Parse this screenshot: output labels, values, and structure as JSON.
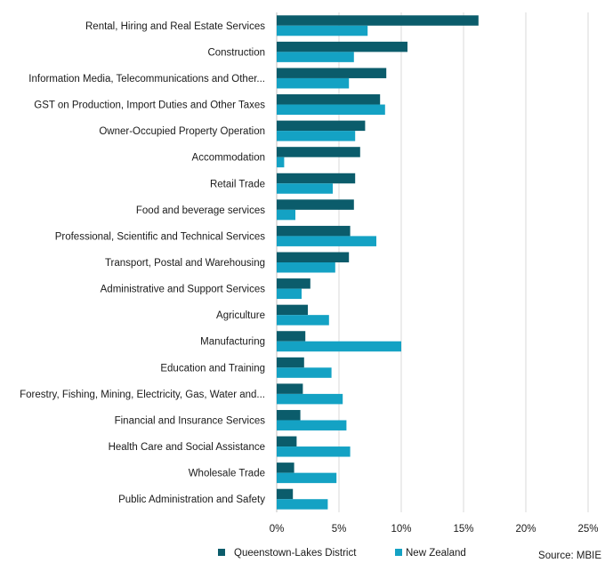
{
  "chart_data": {
    "type": "bar",
    "orientation": "horizontal",
    "title": "",
    "xlabel": "",
    "ylabel": "",
    "xlim": [
      0,
      25
    ],
    "x_ticks": [
      "0%",
      "5%",
      "10%",
      "15%",
      "20%",
      "25%"
    ],
    "grid": "vertical",
    "categories": [
      "Rental, Hiring and Real Estate Services",
      "Construction",
      "Information Media, Telecommunications and Other...",
      "GST on Production, Import Duties and Other Taxes",
      "Owner-Occupied Property Operation",
      "Accommodation",
      "Retail Trade",
      "Food and beverage services",
      "Professional, Scientific and Technical Services",
      "Transport, Postal and Warehousing",
      "Administrative and Support Services",
      "Agriculture",
      "Manufacturing",
      "Education and Training",
      "Forestry, Fishing, Mining, Electricity, Gas, Water and...",
      "Financial and Insurance Services",
      "Health Care and Social Assistance",
      "Wholesale Trade",
      "Public Administration and Safety"
    ],
    "series": [
      {
        "name": "Queenstown-Lakes District",
        "color": "#0b5c6b",
        "values": [
          16.2,
          10.5,
          8.8,
          8.3,
          7.1,
          6.7,
          6.3,
          6.2,
          5.9,
          5.8,
          2.7,
          2.5,
          2.3,
          2.2,
          2.1,
          1.9,
          1.6,
          1.4,
          1.3
        ]
      },
      {
        "name": "New Zealand",
        "color": "#14a2c4",
        "values": [
          7.3,
          6.2,
          5.8,
          8.7,
          6.3,
          0.6,
          4.5,
          1.5,
          8.0,
          4.7,
          2.0,
          4.2,
          10.0,
          4.4,
          5.3,
          5.6,
          5.9,
          4.8,
          4.1
        ]
      }
    ],
    "legend_position": "bottom",
    "source": "Source: MBIE"
  }
}
